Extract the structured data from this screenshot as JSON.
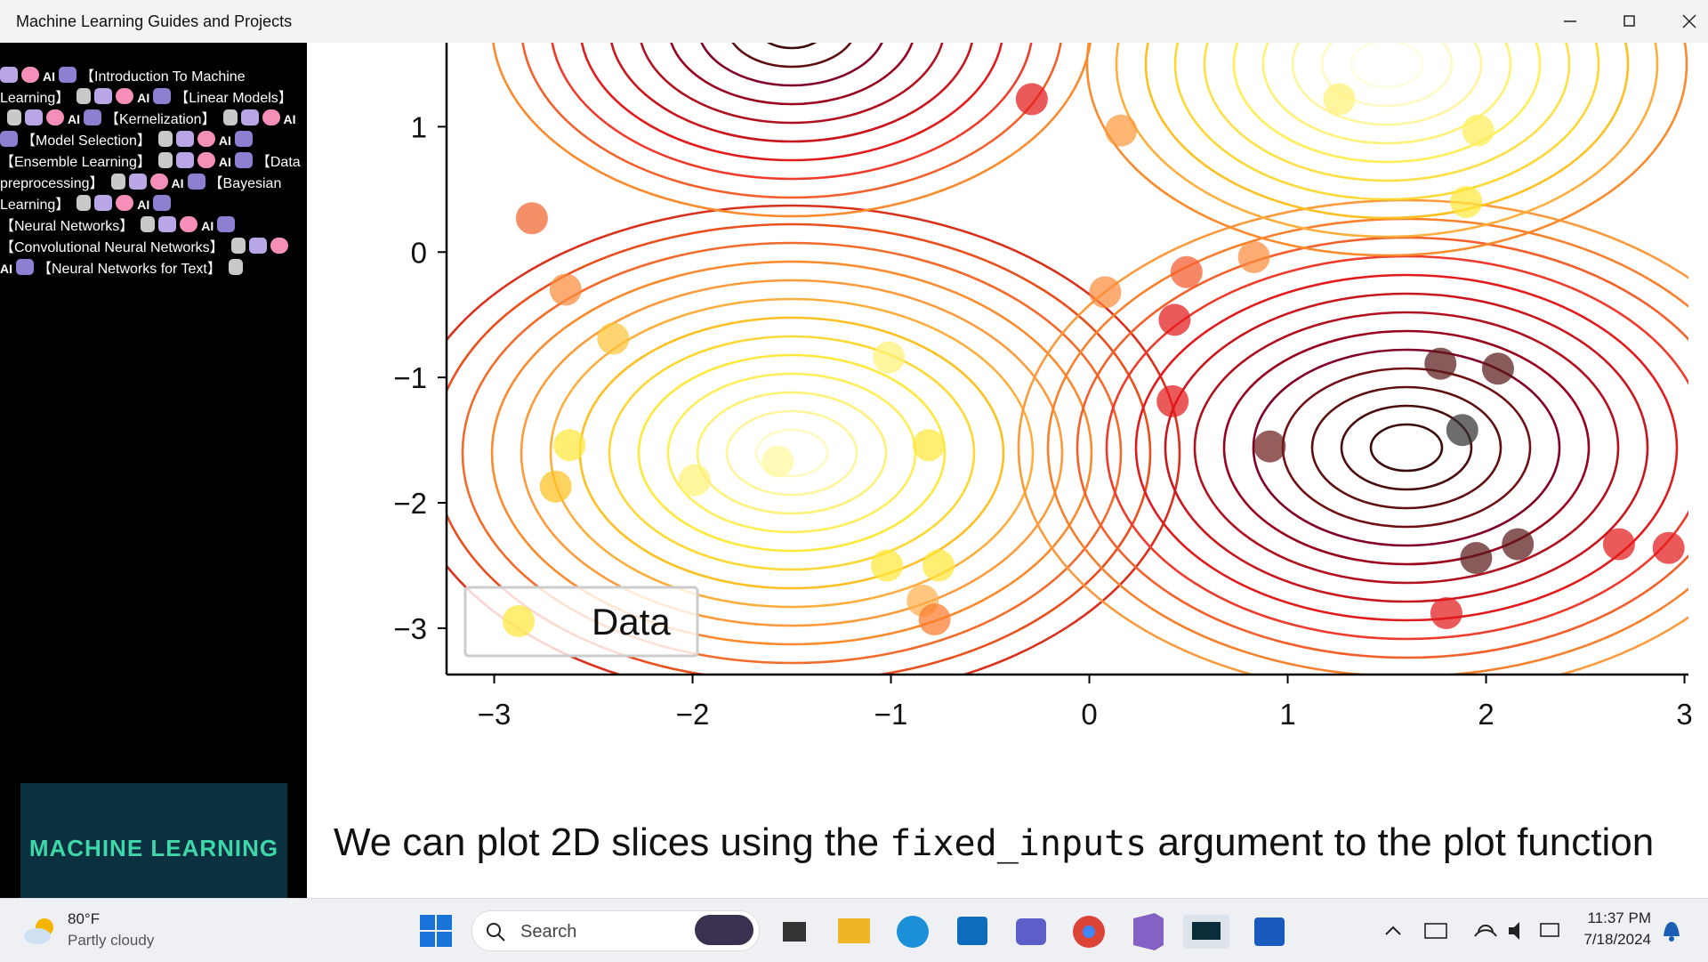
{
  "window": {
    "title": "Machine Learning Guides and Projects"
  },
  "sidebar": {
    "icon_label": "AI",
    "items": [
      "【Introduction To Machine Learning】",
      "【Linear Models】",
      "【Kernelization】",
      "【Model Selection】",
      "【Ensemble Learning】",
      "【Data preprocessing】",
      "【Bayesian Learning】",
      "【Neural Networks】",
      "【Convolutional Neural Networks】",
      "【Neural Networks for Text】"
    ],
    "banner": "MACHINE LEARNING"
  },
  "chart_data": {
    "type": "scatter",
    "legend": "lower left",
    "xlim": [
      -3.24,
      3.02
    ],
    "ylim": [
      -3.37,
      1.67
    ],
    "xticks": [
      {
        "value": -3,
        "label": "−3"
      },
      {
        "value": -2,
        "label": "−2"
      },
      {
        "value": -1,
        "label": "−1"
      },
      0,
      1,
      2,
      3
    ],
    "yticks": [
      1,
      0,
      {
        "value": -1,
        "label": "−1"
      },
      {
        "value": -2,
        "label": "−2"
      },
      {
        "value": -3,
        "label": "−3"
      }
    ],
    "x": [
      -0.29,
      0.16,
      1.26,
      1.96,
      1.9,
      -2.81,
      -2.64,
      -2.4,
      -1.01,
      0.08,
      0.49,
      0.83,
      0.43,
      0.42,
      1.77,
      2.06,
      0.91,
      1.88,
      -2.62,
      -0.81,
      -1.99,
      -1.57,
      -2.69,
      -1.02,
      -0.76,
      -0.84,
      -0.78,
      1.95,
      2.16,
      2.67,
      2.92,
      1.8
    ],
    "series": [
      {
        "name": "Data",
        "color": "#ffe83a",
        "values": [
          1.22,
          0.97,
          1.22,
          0.97,
          0.4,
          0.27,
          -0.3,
          -0.69,
          -0.84,
          -0.32,
          -0.16,
          -0.04,
          -0.54,
          -1.19,
          -0.89,
          -0.93,
          -1.55,
          -1.42,
          -1.54,
          -1.54,
          -1.82,
          -1.67,
          -1.87,
          -2.5,
          -2.5,
          -2.78,
          -2.93,
          -2.44,
          -2.33,
          -2.33,
          -2.36,
          -2.88
        ],
        "colors": [
          "#e31a1c",
          "#fd9a3c",
          "#fff176",
          "#ffef5a",
          "#ffe83a",
          "#f0642c",
          "#fb8a3c",
          "#fdc43a",
          "#fff176",
          "#fb8a3c",
          "#f45a2c",
          "#fb8a3c",
          "#e31a1c",
          "#e31a1c",
          "#5a1a1a",
          "#5a1a1a",
          "#6e1e1e",
          "#333333",
          "#ffe83a",
          "#ffe83a",
          "#fff176",
          "#fff8a0",
          "#fdc020",
          "#ffe83a",
          "#ffe83a",
          "#fdb04c",
          "#fb7c2c",
          "#5a1a1a",
          "#5a1a1a",
          "#e31a1c",
          "#e31a1c",
          "#e31a1c"
        ]
      }
    ]
  },
  "content": {
    "paragraph_before": "We can plot 2D slices using the ",
    "code": "fixed_inputs",
    "paragraph_after": " argument to the plot function"
  },
  "taskbar": {
    "temperature": "80°F",
    "weather": "Partly cloudy",
    "search": "Search",
    "time": "11:37 PM",
    "date": "7/18/2024"
  }
}
